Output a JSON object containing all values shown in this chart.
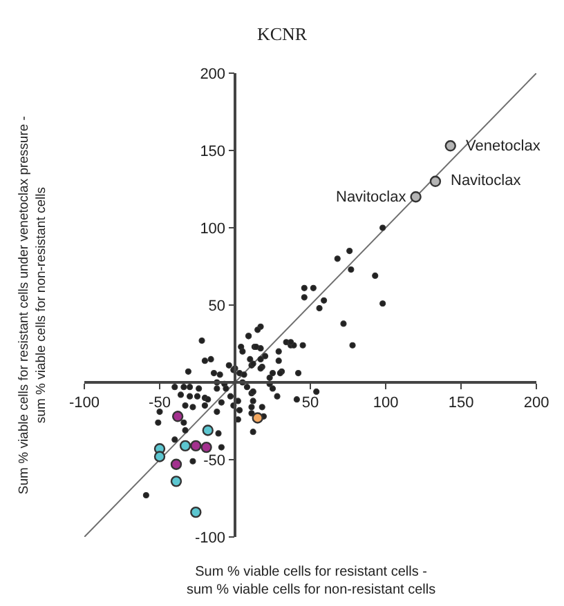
{
  "chart_data": {
    "type": "scatter",
    "title": "KCNR",
    "xlabel": "Sum % viable cells for resistant cells -\nsum % viable cells for non-resistant cells",
    "ylabel": "Sum % viable cells for resistant cells under venetoclax pressure -\nsum % viable cells for non-resistant cells",
    "xlim": [
      -100,
      200
    ],
    "ylim": [
      -100,
      200
    ],
    "xticks": [
      -100,
      -50,
      50,
      100,
      150,
      200
    ],
    "yticks": [
      -100,
      -50,
      50,
      100,
      150,
      200
    ],
    "series": [
      {
        "type": "line",
        "color": "#6e6e6e",
        "x": [
          -100,
          200
        ],
        "values": [
          -100,
          200
        ]
      },
      {
        "marker": "circle",
        "color": "#222222",
        "x": [
          76,
          68,
          77,
          93,
          46,
          52,
          46,
          59,
          56,
          98,
          72,
          78,
          34,
          37,
          39,
          45,
          29,
          29,
          31,
          42,
          23,
          23,
          25,
          28,
          41,
          54,
          17,
          15,
          9,
          13,
          17,
          20,
          17,
          18,
          11,
          12,
          11,
          12,
          11,
          18,
          11,
          19,
          98,
          -22,
          -20,
          -16,
          -31,
          -40,
          -34,
          -30,
          -24,
          -36,
          -30,
          -25,
          -20,
          -18,
          -33,
          -28,
          -20,
          -12,
          -50,
          -51,
          -34,
          -33,
          -40,
          -11,
          -9,
          -28,
          -59,
          -14,
          -10,
          -12,
          -7,
          -12,
          -6,
          -3,
          -1,
          -9,
          2,
          3,
          2,
          -4,
          -1,
          0,
          3,
          6,
          5,
          8,
          12,
          4,
          5,
          14,
          9,
          10,
          12,
          17,
          30,
          12,
          25,
          37
        ],
        "values": [
          85,
          80,
          73,
          69,
          61,
          61,
          55,
          53,
          48,
          51,
          38,
          24,
          26,
          24,
          24,
          24,
          20,
          14,
          7,
          6,
          3,
          -1,
          -4,
          -9,
          -11,
          -6,
          36,
          34,
          30,
          23,
          22,
          17,
          15,
          10,
          11,
          -6,
          -7,
          -12,
          -16,
          -16,
          -20,
          -22,
          100,
          27,
          14,
          15,
          7,
          -3,
          -3,
          -3,
          -4,
          -8,
          -9,
          -9,
          -10,
          -11,
          -15,
          -16,
          -15,
          -19,
          -19,
          -26,
          -26,
          -31,
          -37,
          -33,
          -42,
          -51,
          -73,
          6,
          5,
          0,
          -1,
          -4,
          -4,
          -9,
          -15,
          -13,
          -12,
          -18,
          -24,
          11,
          8,
          9,
          6,
          5,
          0,
          -3,
          -6,
          23,
          20,
          23,
          30,
          15,
          12,
          9,
          6,
          -32,
          6,
          26
        ]
      },
      {
        "marker": "circle",
        "color": "#a3308e",
        "x": [
          -38,
          -26,
          -19,
          -39
        ],
        "values": [
          -22,
          -41,
          -42,
          -53
        ]
      },
      {
        "marker": "circle",
        "color": "#5cc6d0",
        "x": [
          -18,
          -33,
          -50,
          -50,
          -39,
          -26
        ],
        "values": [
          -31,
          -41,
          -43,
          -48,
          -64,
          -84
        ]
      },
      {
        "marker": "circle",
        "color": "#f4a860",
        "x": [
          15
        ],
        "values": [
          -23
        ]
      },
      {
        "marker": "circle",
        "color": "#b4b4b4",
        "x": [
          143,
          133,
          120
        ],
        "values": [
          153,
          130,
          120
        ]
      }
    ],
    "annotations": [
      {
        "text": "Venetoclax",
        "x": 143,
        "y": 153
      },
      {
        "text": "Navitoclax",
        "x": 133,
        "y": 130
      },
      {
        "text": "Navitoclax",
        "x": 120,
        "y": 120
      }
    ]
  }
}
